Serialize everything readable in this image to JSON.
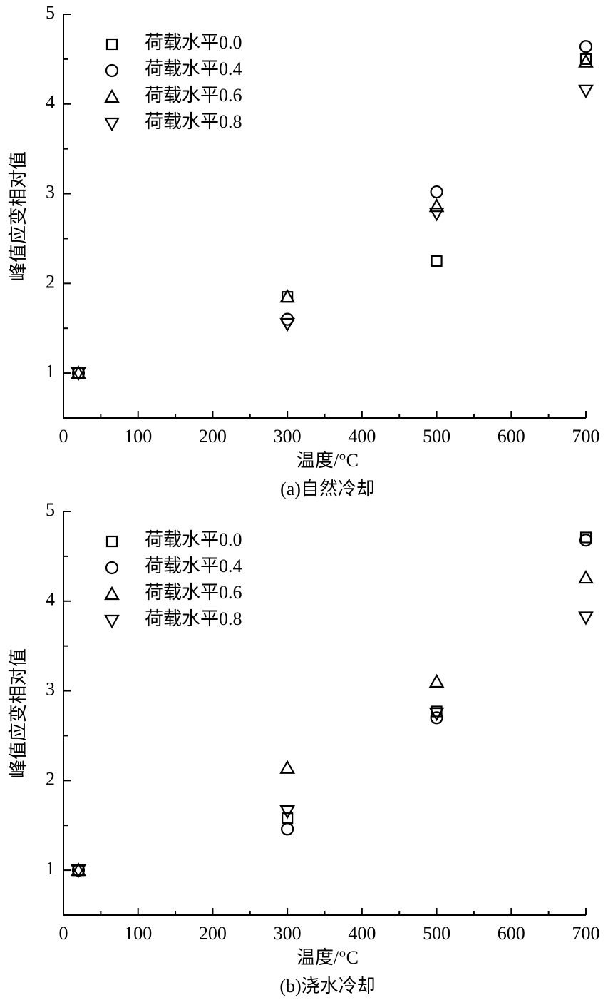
{
  "chart_data": [
    {
      "type": "scatter",
      "caption": "(a)自然冷却",
      "xlabel": "温度/°C",
      "ylabel": "峰值应变相对值",
      "x": [
        20,
        300,
        500,
        700
      ],
      "series": [
        {
          "name": "荷载水平0.0",
          "marker": "square",
          "color": "#000000",
          "values": [
            1.0,
            1.85,
            2.25,
            4.5
          ]
        },
        {
          "name": "荷载水平0.4",
          "marker": "circle",
          "color": "#000000",
          "values": [
            1.0,
            1.6,
            3.02,
            4.64
          ]
        },
        {
          "name": "荷载水平0.6",
          "marker": "triangle-up",
          "color": "#000000",
          "values": [
            1.0,
            1.85,
            2.86,
            4.47
          ]
        },
        {
          "name": "荷载水平0.8",
          "marker": "triangle-down",
          "color": "#000000",
          "values": [
            1.0,
            1.55,
            2.78,
            4.15
          ]
        }
      ],
      "xlim": [
        0,
        700
      ],
      "xticks": [
        0,
        100,
        200,
        300,
        400,
        500,
        600,
        700
      ],
      "ylim": [
        0.5,
        5
      ],
      "yticks": [
        1,
        2,
        3,
        4,
        5
      ],
      "legend": "upper left"
    },
    {
      "type": "scatter",
      "caption": "(b)浇水冷却",
      "xlabel": "温度/°C",
      "ylabel": "峰值应变相对值",
      "x": [
        20,
        300,
        500,
        700
      ],
      "series": [
        {
          "name": "荷载水平0.0",
          "marker": "square",
          "color": "#000000",
          "values": [
            1.0,
            1.58,
            2.77,
            4.71
          ]
        },
        {
          "name": "荷载水平0.4",
          "marker": "circle",
          "color": "#000000",
          "values": [
            1.0,
            1.46,
            2.7,
            4.68
          ]
        },
        {
          "name": "荷载水平0.6",
          "marker": "triangle-up",
          "color": "#000000",
          "values": [
            1.0,
            2.14,
            3.1,
            4.26
          ]
        },
        {
          "name": "荷载水平0.8",
          "marker": "triangle-down",
          "color": "#000000",
          "values": [
            1.0,
            1.66,
            2.75,
            3.82
          ]
        }
      ],
      "xlim": [
        0,
        700
      ],
      "xticks": [
        0,
        100,
        200,
        300,
        400,
        500,
        600,
        700
      ],
      "ylim": [
        0.5,
        5
      ],
      "yticks": [
        1,
        2,
        3,
        4,
        5
      ],
      "legend": "upper left"
    }
  ]
}
